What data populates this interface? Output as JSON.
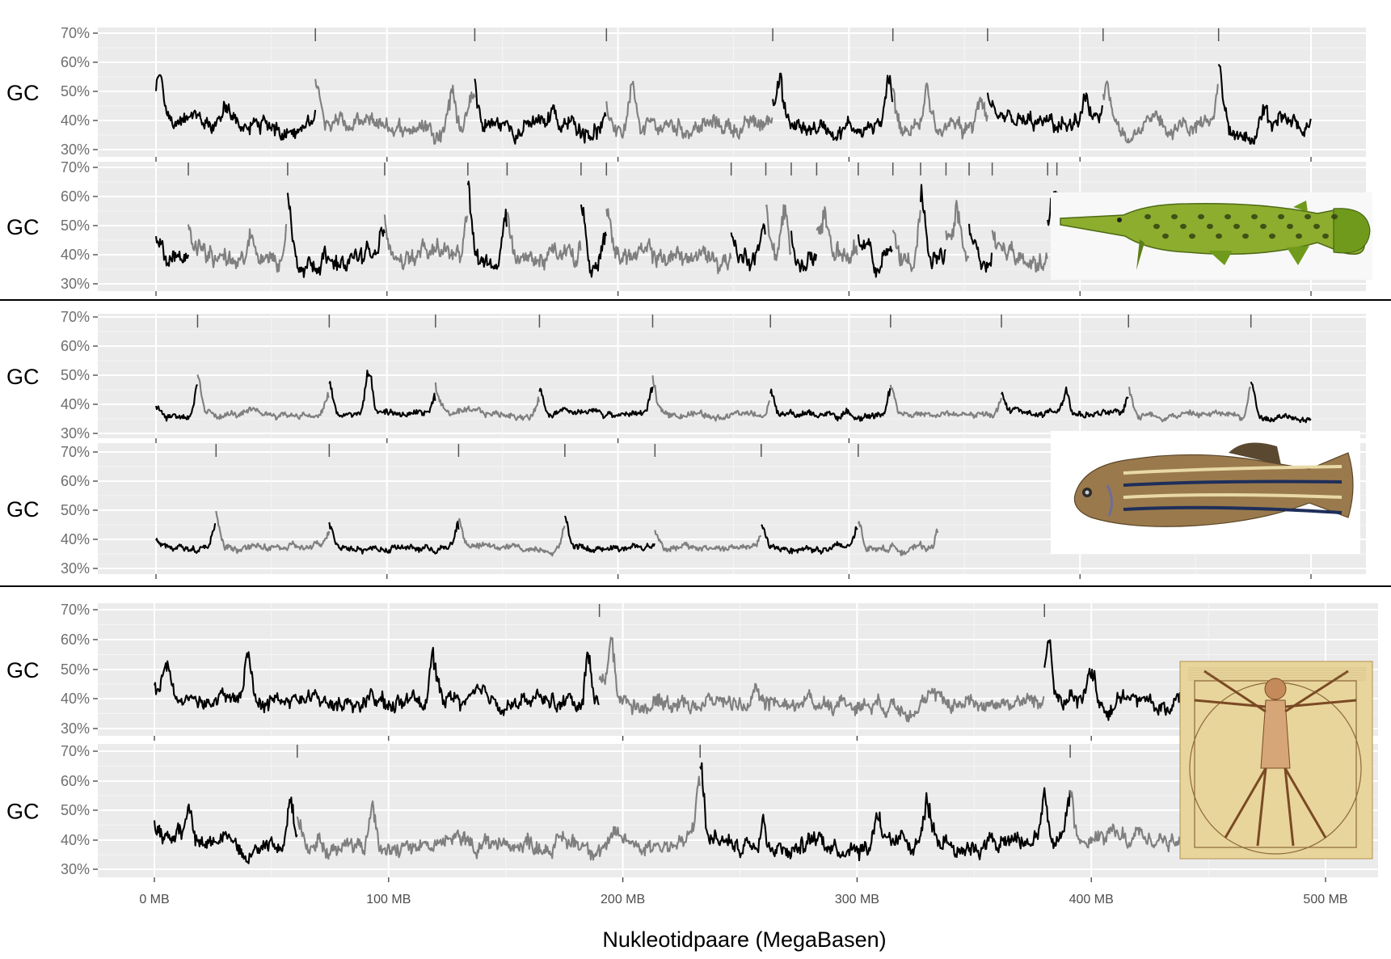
{
  "chart_data": {
    "type": "line",
    "title": "",
    "xlabel": "Nukleotidpaare (MegaBasen)",
    "ylabel": "GC",
    "x_unit": "MB",
    "x_ticks": [
      "0 MB",
      "100 MB",
      "200 MB",
      "300 MB",
      "400 MB",
      "500 MB"
    ],
    "y_ticks": [
      "30%",
      "40%",
      "50%",
      "60%",
      "70%"
    ],
    "ylim": [
      30,
      70
    ],
    "xlim": [
      0,
      500
    ],
    "grid": true,
    "series_colors": [
      "#000000",
      "#7f7f7f"
    ],
    "groups": [
      {
        "organism": "spotted gar",
        "organism_icon": "gar-fish-photo",
        "panels": [
          {
            "label": "GC",
            "genome_mb": 500,
            "baseline": 38,
            "amp": 5.5,
            "boundaries_mb": [
              0,
              69,
              138,
              195,
              267,
              319,
              360,
              410,
              460,
              500
            ],
            "peaks": [
              [
                2,
                52
              ],
              [
                30,
                46
              ],
              [
                70,
                47
              ],
              [
                128,
                54
              ],
              [
                137,
                49
              ],
              [
                172,
                47
              ],
              [
                206,
                52
              ],
              [
                270,
                54
              ],
              [
                317,
                57
              ],
              [
                334,
                52
              ],
              [
                357,
                48
              ],
              [
                402,
                50
              ],
              [
                412,
                48
              ],
              [
                460,
                54
              ],
              [
                480,
                46
              ]
            ]
          },
          {
            "label": "GC",
            "genome_mb": 500,
            "baseline": 39,
            "amp": 6.5,
            "boundaries_mb": [
              0,
              14,
              57,
              99,
              135,
              152,
              184,
              195,
              249,
              264,
              275,
              286,
              304,
              319,
              331,
              342,
              352,
              362,
              386,
              390,
              500
            ],
            "peaks": [
              [
                20,
                45
              ],
              [
                41,
                47
              ],
              [
                57,
                52
              ],
              [
                98,
                47
              ],
              [
                135,
                62
              ],
              [
                151,
                53
              ],
              [
                185,
                49
              ],
              [
                194,
                52
              ],
              [
                263,
                53
              ],
              [
                272,
                56
              ],
              [
                290,
                55
              ],
              [
                309,
                49
              ],
              [
                331,
                55
              ],
              [
                347,
                54
              ],
              [
                365,
                47
              ],
              [
                389,
                58
              ]
            ]
          }
        ]
      },
      {
        "organism": "zebrafish",
        "organism_icon": "zebrafish-photo",
        "panels": [
          {
            "label": "GC",
            "genome_mb": 500,
            "baseline": 36.5,
            "amp": 2.2,
            "boundaries_mb": [
              0,
              18,
              75,
              121,
              166,
              215,
              266,
              318,
              366,
              421,
              474,
              500
            ],
            "peaks": [
              [
                18,
                48
              ],
              [
                75,
                45
              ],
              [
                92,
                53
              ],
              [
                121,
                44
              ],
              [
                166,
                43
              ],
              [
                215,
                46
              ],
              [
                266,
                42
              ],
              [
                318,
                45
              ],
              [
                366,
                43
              ],
              [
                394,
                45
              ],
              [
                421,
                44
              ],
              [
                474,
                47
              ]
            ]
          },
          {
            "label": "GC",
            "genome_mb": 339,
            "baseline": 37,
            "amp": 2.2,
            "boundaries_mb": [
              0,
              26,
              75,
              131,
              177,
              216,
              262,
              304,
              339
            ],
            "peaks": [
              [
                26,
                47
              ],
              [
                75,
                43
              ],
              [
                131,
                45
              ],
              [
                177,
                45
              ],
              [
                216,
                40
              ],
              [
                262,
                42
              ],
              [
                304,
                45
              ],
              [
                339,
                44
              ]
            ]
          }
        ]
      },
      {
        "organism": "human",
        "organism_icon": "vitruvian-man-drawing",
        "panels": [
          {
            "label": "GC",
            "genome_mb": 500,
            "baseline": 39,
            "amp": 5.0,
            "boundaries_mb": [
              0,
              190,
              380,
              500
            ],
            "peaks": [
              [
                5,
                53
              ],
              [
                40,
                56
              ],
              [
                119,
                55
              ],
              [
                185,
                56
              ],
              [
                195,
                60
              ],
              [
                382,
                60
              ],
              [
                400,
                50
              ]
            ]
          },
          {
            "label": "GC",
            "genome_mb": 500,
            "baseline": 39,
            "amp": 5.5,
            "boundaries_mb": [
              0,
              61,
              233,
              391,
              500
            ],
            "peaks": [
              [
                15,
                51
              ],
              [
                58,
                57
              ],
              [
                93,
                54
              ],
              [
                233,
                61
              ],
              [
                260,
                52
              ],
              [
                309,
                53
              ],
              [
                330,
                55
              ],
              [
                380,
                56
              ],
              [
                391,
                52
              ]
            ]
          }
        ]
      }
    ]
  }
}
